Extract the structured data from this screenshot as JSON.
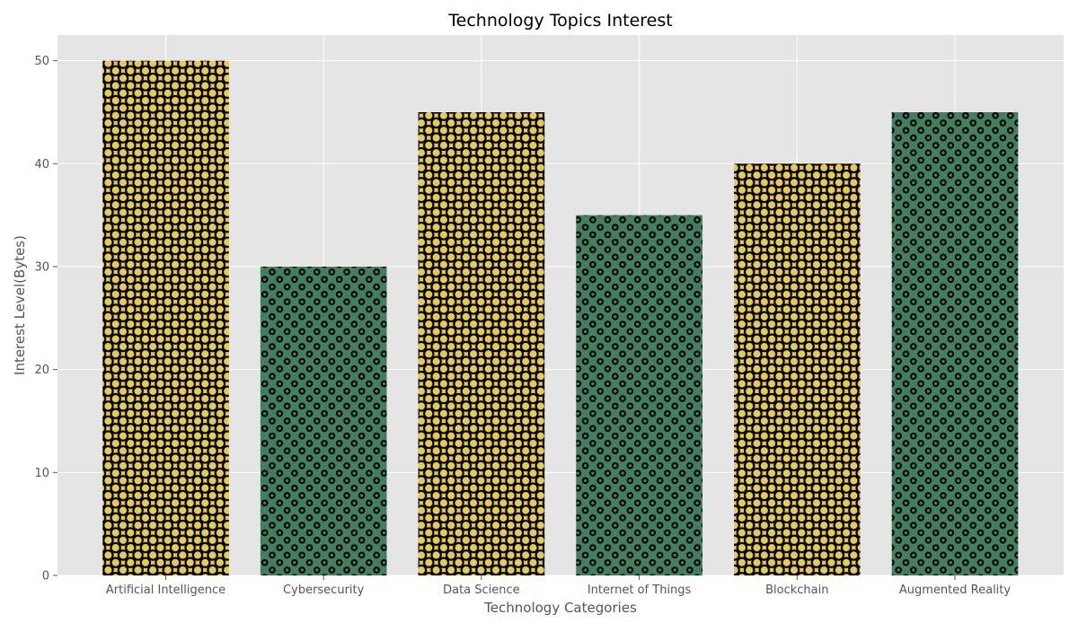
{
  "chart_data": {
    "type": "bar",
    "title": "Technology Topics Interest",
    "xlabel": "Technology Categories",
    "ylabel": "Interest Level(Bytes)",
    "categories": [
      "Artificial Intelligence",
      "Cybersecurity",
      "Data Science",
      "Internet of Things",
      "Blockchain",
      "Augmented Reality"
    ],
    "values": [
      50,
      30,
      45,
      35,
      40,
      45
    ],
    "bar_styles": [
      "yellow-ring",
      "green-dot",
      "yellow-ring",
      "green-dot",
      "yellow-ring",
      "green-dot"
    ],
    "yticks": [
      0,
      10,
      20,
      30,
      40,
      50
    ],
    "ylim": [
      0,
      52.5
    ],
    "grid": true,
    "colors": {
      "yellow": "#e5c95e",
      "green": "#457d5f",
      "hatch": "#000000",
      "plot_bg": "#e5e5e5",
      "grid": "#ffffff",
      "text": "#555555",
      "title": "#000000"
    }
  }
}
